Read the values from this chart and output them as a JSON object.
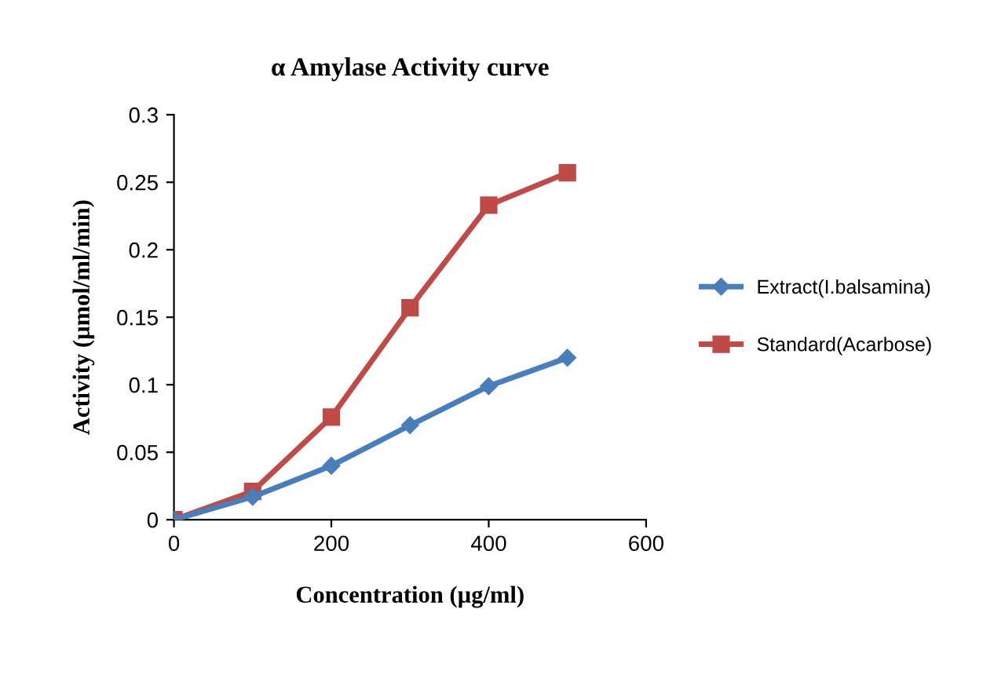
{
  "chart_data": {
    "type": "line",
    "title": "α Amylase Activity curve",
    "xlabel": "Concentration (µg/ml)",
    "ylabel": "Activity (µmol/ml/min)",
    "x": [
      0,
      100,
      200,
      300,
      400,
      500
    ],
    "series": [
      {
        "name": "Extract(I.balsamina)",
        "color": "#4a7ebb",
        "marker": "diamond",
        "values": [
          0,
          0.017,
          0.04,
          0.07,
          0.099,
          0.12
        ]
      },
      {
        "name": "Standard(Acarbose)",
        "color": "#be4b48",
        "marker": "square",
        "values": [
          0,
          0.021,
          0.076,
          0.157,
          0.233,
          0.257
        ]
      }
    ],
    "xlim": [
      0,
      600
    ],
    "xticks": [
      0,
      200,
      400,
      600
    ],
    "ylim": [
      0,
      0.3
    ],
    "yticks": [
      0,
      0.05,
      0.1,
      0.15,
      0.2,
      0.25,
      0.3
    ],
    "legend": "right",
    "grid": false
  }
}
